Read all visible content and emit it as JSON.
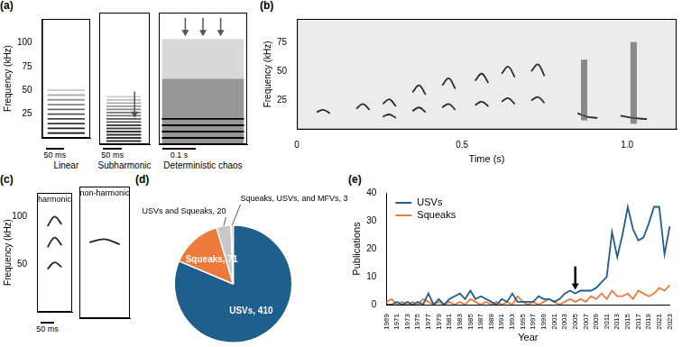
{
  "chart_data": [
    {
      "type": "line",
      "title": "(a)",
      "xlabel": "Linear",
      "ylabel": "Frequency (kHz)",
      "annotations": [
        "50 ms"
      ],
      "xlim": [
        0,
        70
      ],
      "ylim": [
        0,
        125
      ],
      "yticks": [
        25,
        50,
        75,
        100
      ],
      "tick_labels": "y",
      "grid": false,
      "series": [
        {
          "color": "#111111",
          "x": [
            8,
            62
          ],
          "values": [
            5,
            5
          ]
        },
        {
          "color": "#222222",
          "x": [
            8,
            62
          ],
          "values": [
            10,
            10
          ]
        },
        {
          "color": "#333333",
          "x": [
            8,
            62
          ],
          "values": [
            15,
            15
          ]
        },
        {
          "color": "#444444",
          "x": [
            8,
            62
          ],
          "values": [
            20,
            20
          ]
        },
        {
          "color": "#555555",
          "x": [
            8,
            62
          ],
          "values": [
            25,
            25
          ]
        },
        {
          "color": "#6a6a6a",
          "x": [
            8,
            62
          ],
          "values": [
            30,
            30
          ]
        },
        {
          "color": "#808080",
          "x": [
            8,
            62
          ],
          "values": [
            35,
            35
          ]
        },
        {
          "color": "#999999",
          "x": [
            8,
            62
          ],
          "values": [
            40,
            40
          ]
        },
        {
          "color": "#b0b0b0",
          "x": [
            8,
            62
          ],
          "values": [
            45,
            45
          ]
        },
        {
          "color": "#c8c8c8",
          "x": [
            8,
            62
          ],
          "values": [
            50,
            50
          ]
        }
      ]
    },
    {
      "type": "line",
      "xlabel": "Subharmonic",
      "annotations": [
        "50 ms"
      ],
      "xlim": [
        0,
        70
      ],
      "ylim": [
        0,
        125
      ],
      "tick_labels": false,
      "grid": false,
      "series": [
        {
          "color": "#333333",
          "x": [
            10,
            58
          ],
          "values": [
            3,
            3
          ]
        },
        {
          "color": "#333333",
          "x": [
            10,
            58
          ],
          "values": [
            6,
            6
          ]
        },
        {
          "color": "#333333",
          "x": [
            10,
            58
          ],
          "values": [
            9,
            9
          ]
        },
        {
          "color": "#333333",
          "x": [
            10,
            58
          ],
          "values": [
            12,
            12
          ]
        },
        {
          "color": "#444444",
          "x": [
            10,
            58
          ],
          "values": [
            15,
            15
          ]
        },
        {
          "color": "#444444",
          "x": [
            10,
            58
          ],
          "values": [
            18,
            18
          ]
        },
        {
          "color": "#555555",
          "x": [
            10,
            58
          ],
          "values": [
            21,
            21
          ]
        },
        {
          "color": "#555555",
          "x": [
            10,
            58
          ],
          "values": [
            24,
            24
          ]
        },
        {
          "color": "#777777",
          "x": [
            10,
            58
          ],
          "values": [
            27,
            27
          ]
        },
        {
          "color": "#777777",
          "x": [
            10,
            58
          ],
          "values": [
            30,
            30
          ]
        },
        {
          "color": "#888888",
          "x": [
            10,
            58
          ],
          "values": [
            33,
            33
          ]
        },
        {
          "color": "#999999",
          "x": [
            10,
            58
          ],
          "values": [
            36,
            36
          ]
        },
        {
          "color": "#aaaaaa",
          "x": [
            10,
            58
          ],
          "values": [
            39,
            39
          ]
        },
        {
          "color": "#bbbbbb",
          "x": [
            10,
            58
          ],
          "values": [
            42,
            42
          ]
        },
        {
          "color": "#cccccc",
          "x": [
            10,
            58
          ],
          "values": [
            45,
            45
          ]
        }
      ]
    },
    {
      "type": "line",
      "xlabel": "Deterministic chaos",
      "annotations": [
        "0.1 s"
      ],
      "xlim": [
        0,
        140
      ],
      "ylim": [
        0,
        125
      ],
      "tick_labels": false,
      "grid": false,
      "series": [
        {
          "color": "#000000",
          "x": [
            5,
            135
          ],
          "values": [
            6,
            6
          ]
        },
        {
          "color": "#000000",
          "x": [
            5,
            135
          ],
          "values": [
            12,
            12
          ]
        },
        {
          "color": "#000000",
          "x": [
            5,
            135
          ],
          "values": [
            18,
            18
          ]
        },
        {
          "color": "#000000",
          "x": [
            5,
            135
          ],
          "values": [
            24,
            24
          ]
        },
        {
          "type": "area",
          "color": "#8c8c8c",
          "x": [
            5,
            135
          ],
          "values": [
            62,
            62
          ]
        },
        {
          "type": "area",
          "color": "#d2d2d2",
          "x": [
            5,
            135
          ],
          "values": [
            100,
            100
          ]
        }
      ]
    },
    {
      "type": "line",
      "title": "(b)",
      "xlabel": "Time (s)",
      "ylabel": "Frequency (kHz)",
      "xlim": [
        0,
        1.15
      ],
      "ylim": [
        0,
        95
      ],
      "xticks": [
        0,
        0.5,
        {
          "value": 1,
          "label": "1.0"
        }
      ],
      "yticks": [
        25,
        50,
        75
      ],
      "grid": false,
      "series": [
        {
          "color": "#2b2b2b",
          "x": [
            0.06,
            0.08,
            0.1
          ],
          "values": [
            15,
            17,
            14
          ]
        },
        {
          "color": "#2b2b2b",
          "x": [
            0.18,
            0.2,
            0.22
          ],
          "values": [
            18,
            22,
            17
          ]
        },
        {
          "color": "#2b2b2b",
          "x": [
            0.26,
            0.28,
            0.3
          ],
          "values": [
            22,
            26,
            20
          ]
        },
        {
          "color": "#2b2b2b",
          "x": [
            0.26,
            0.28,
            0.3
          ],
          "values": [
            11,
            13,
            10
          ]
        },
        {
          "color": "#2b2b2b",
          "x": [
            0.35,
            0.37,
            0.39
          ],
          "values": [
            32,
            38,
            30
          ]
        },
        {
          "color": "#2b2b2b",
          "x": [
            0.35,
            0.37,
            0.39
          ],
          "values": [
            16,
            19,
            15
          ]
        },
        {
          "color": "#2b2b2b",
          "x": [
            0.44,
            0.46,
            0.48
          ],
          "values": [
            38,
            44,
            35
          ]
        },
        {
          "color": "#2b2b2b",
          "x": [
            0.44,
            0.46,
            0.48
          ],
          "values": [
            19,
            22,
            17
          ]
        },
        {
          "color": "#2b2b2b",
          "x": [
            0.54,
            0.56,
            0.58
          ],
          "values": [
            42,
            48,
            40
          ]
        },
        {
          "color": "#2b2b2b",
          "x": [
            0.54,
            0.56,
            0.58
          ],
          "values": [
            21,
            24,
            20
          ]
        },
        {
          "color": "#2b2b2b",
          "x": [
            0.62,
            0.64,
            0.66
          ],
          "values": [
            48,
            54,
            45
          ]
        },
        {
          "color": "#2b2b2b",
          "x": [
            0.62,
            0.64,
            0.66
          ],
          "values": [
            24,
            27,
            22
          ]
        },
        {
          "color": "#2b2b2b",
          "x": [
            0.71,
            0.73,
            0.75
          ],
          "values": [
            50,
            56,
            46
          ]
        },
        {
          "color": "#2b2b2b",
          "x": [
            0.71,
            0.73,
            0.75
          ],
          "values": [
            25,
            28,
            23
          ]
        },
        {
          "type": "noise",
          "color": "#555555",
          "x": [
            0.87,
            0.87
          ],
          "values": [
            8,
            60
          ]
        },
        {
          "color": "#2b2b2b",
          "x": [
            0.85,
            0.88,
            0.91
          ],
          "values": [
            14,
            11,
            10
          ]
        },
        {
          "type": "noise",
          "color": "#555555",
          "x": [
            1.02,
            1.02
          ],
          "values": [
            5,
            75
          ]
        },
        {
          "color": "#2b2b2b",
          "x": [
            0.98,
            1.02,
            1.06
          ],
          "values": [
            12,
            10,
            9
          ]
        }
      ]
    },
    {
      "type": "line",
      "title": "(c)",
      "subtitle": "harmonic",
      "ylabel": "Frequency (kHz)",
      "annotations": [
        "50 ms"
      ],
      "xlim": [
        0,
        50
      ],
      "ylim": [
        0,
        125
      ],
      "yticks": [
        50,
        100
      ],
      "tick_labels": "y",
      "grid": false,
      "series": [
        {
          "color": "#222222",
          "x": [
            15,
            25,
            35
          ],
          "values": [
            45,
            52,
            47
          ]
        },
        {
          "color": "#222222",
          "x": [
            15,
            25,
            35
          ],
          "values": [
            68,
            78,
            70
          ]
        },
        {
          "color": "#222222",
          "x": [
            15,
            25,
            35
          ],
          "values": [
            90,
            100,
            92
          ]
        }
      ]
    },
    {
      "type": "line",
      "subtitle": "non-harmonic",
      "xlim": [
        0,
        50
      ],
      "ylim": [
        0,
        125
      ],
      "tick_labels": false,
      "grid": false,
      "series": [
        {
          "color": "#222222",
          "x": [
            10,
            25,
            40
          ],
          "values": [
            72,
            75,
            70
          ]
        }
      ]
    },
    {
      "type": "pie",
      "title": "(d)",
      "values": [
        410,
        71,
        20,
        3
      ],
      "value_labels": [
        "USVs, 410",
        "Squeaks, 71",
        "USVs and Squeaks, 20",
        "Squeaks, USVs, and MFVs, 3"
      ],
      "colors": [
        "#1f5f8b",
        "#ec7a3b",
        "#c8c8c8",
        "#f5c342"
      ],
      "data_labels": true
    },
    {
      "type": "line",
      "title": "(e)",
      "xlabel": "Year",
      "ylabel": "Publications",
      "categories": [
        "1969",
        null,
        "1971",
        null,
        "1973",
        null,
        "1975",
        null,
        "1977",
        null,
        "1979",
        null,
        "1981",
        null,
        "1983",
        null,
        "1985",
        null,
        "1987",
        null,
        "1989",
        null,
        "1991",
        null,
        "1993",
        null,
        "1995",
        null,
        "1997",
        null,
        "1999",
        null,
        "2001",
        null,
        "2003",
        null,
        "2005",
        null,
        "2007",
        null,
        "2009",
        null,
        "2011",
        null,
        "2013",
        null,
        "2015",
        null,
        "2017",
        null,
        "2019",
        null,
        "2021",
        null,
        "2023"
      ],
      "series": [
        {
          "name": "USVs",
          "color": "#1f5f8b",
          "values": [
            0,
            0,
            1,
            0,
            1,
            0,
            1,
            0,
            4,
            0,
            2,
            0,
            2,
            3,
            4,
            2,
            5,
            2,
            3,
            2,
            1,
            0,
            2,
            1,
            4,
            1,
            1,
            1,
            1,
            3,
            2,
            2,
            1,
            2,
            4,
            5,
            4,
            5,
            5,
            5,
            6,
            8,
            10,
            26,
            17,
            25,
            35,
            27,
            23,
            24,
            29,
            35,
            35,
            18,
            28
          ]
        },
        {
          "name": "Squeaks",
          "color": "#ec7a3b",
          "values": [
            1,
            2,
            0,
            1,
            0,
            1,
            0,
            2,
            1,
            0,
            1,
            0,
            1,
            0,
            1,
            0,
            2,
            1,
            0,
            1,
            0,
            1,
            0,
            1,
            0,
            3,
            1,
            0,
            1,
            0,
            1,
            2,
            1,
            0,
            1,
            2,
            1,
            2,
            1,
            3,
            2,
            4,
            2,
            5,
            3,
            3,
            4,
            2,
            5,
            4,
            3,
            4,
            6,
            5,
            7
          ]
        }
      ],
      "ylim": [
        0,
        40
      ],
      "yticks": [
        0,
        10,
        20,
        30,
        40
      ],
      "legend": "top-left",
      "grid": false,
      "annotations": [
        {
          "type": "arrow",
          "x": "2005"
        }
      ]
    }
  ]
}
